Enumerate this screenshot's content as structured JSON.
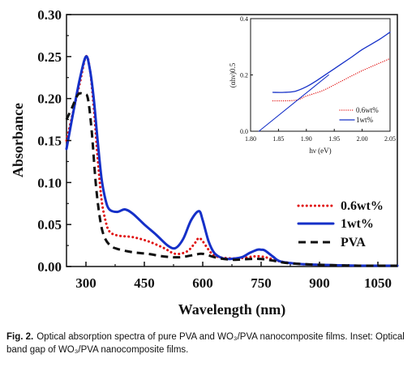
{
  "chart_data": [
    {
      "type": "line",
      "xlabel": "Wavelength (nm)",
      "ylabel": "Absorbance",
      "xlim": [
        250,
        1100
      ],
      "ylim": [
        0,
        0.3
      ],
      "xticks": [
        "300",
        "450",
        "600",
        "750",
        "900",
        "1050"
      ],
      "yticks": [
        "0.00",
        "0.05",
        "0.10",
        "0.15",
        "0.20",
        "0.25",
        "0.30"
      ],
      "legend_position": "lower-right",
      "series": [
        {
          "name": "0.6wt%",
          "color": "#e01010",
          "style": "dotted",
          "x": [
            250,
            270,
            285,
            300,
            310,
            320,
            330,
            340,
            350,
            360,
            380,
            420,
            460,
            500,
            530,
            560,
            580,
            590,
            600,
            615,
            630,
            660,
            700,
            730,
            750,
            770,
            800,
            850,
            900,
            1000,
            1100
          ],
          "y": [
            0.15,
            0.19,
            0.22,
            0.25,
            0.235,
            0.19,
            0.13,
            0.08,
            0.055,
            0.042,
            0.037,
            0.035,
            0.03,
            0.022,
            0.015,
            0.018,
            0.028,
            0.034,
            0.03,
            0.02,
            0.013,
            0.01,
            0.01,
            0.012,
            0.012,
            0.01,
            0.006,
            0.003,
            0.002,
            0.001,
            0.001
          ]
        },
        {
          "name": "1wt%",
          "color": "#1530c8",
          "style": "solid",
          "x": [
            250,
            270,
            285,
            300,
            310,
            320,
            330,
            340,
            350,
            360,
            380,
            400,
            420,
            450,
            480,
            510,
            530,
            550,
            570,
            590,
            600,
            615,
            630,
            650,
            670,
            700,
            720,
            740,
            750,
            760,
            780,
            800,
            850,
            900,
            1000,
            1100
          ],
          "y": [
            0.14,
            0.19,
            0.225,
            0.25,
            0.235,
            0.2,
            0.15,
            0.105,
            0.08,
            0.068,
            0.065,
            0.068,
            0.063,
            0.05,
            0.038,
            0.025,
            0.022,
            0.033,
            0.055,
            0.066,
            0.055,
            0.03,
            0.016,
            0.01,
            0.009,
            0.011,
            0.016,
            0.02,
            0.02,
            0.019,
            0.012,
            0.006,
            0.003,
            0.002,
            0.001,
            0.001
          ]
        },
        {
          "name": "PVA",
          "color": "#111111",
          "style": "dashed",
          "x": [
            250,
            265,
            280,
            295,
            305,
            315,
            325,
            335,
            345,
            360,
            380,
            420,
            460,
            500,
            540,
            580,
            600,
            640,
            680,
            720,
            750,
            780,
            820,
            900,
            1000,
            1100
          ],
          "y": [
            0.175,
            0.19,
            0.205,
            0.205,
            0.2,
            0.16,
            0.1,
            0.06,
            0.038,
            0.026,
            0.021,
            0.017,
            0.015,
            0.012,
            0.011,
            0.014,
            0.015,
            0.01,
            0.008,
            0.009,
            0.009,
            0.007,
            0.004,
            0.002,
            0.001,
            0.001
          ]
        }
      ]
    },
    {
      "type": "line",
      "role": "inset",
      "xlabel": "hν (eV)",
      "ylabel": "(αhν)0.5",
      "xlim": [
        1.8,
        2.05
      ],
      "ylim": [
        0.0,
        0.4
      ],
      "xticks": [
        "1.80",
        "1.85",
        "1.90",
        "1.95",
        "2.00",
        "2.05"
      ],
      "yticks": [
        "0.0",
        "0.2",
        "0.4"
      ],
      "legend_position": "lower-right",
      "series": [
        {
          "name": "0.6wt%",
          "color": "#e01010",
          "style": "dotted",
          "x": [
            1.84,
            1.88,
            1.9,
            1.93,
            1.96,
            2.0,
            2.05
          ],
          "y": [
            0.108,
            0.11,
            0.125,
            0.145,
            0.175,
            0.215,
            0.258
          ]
        },
        {
          "name": "1wt%",
          "color": "#1530c8",
          "style": "solid",
          "x": [
            1.84,
            1.86,
            1.88,
            1.9,
            1.92,
            1.95,
            1.98,
            2.0,
            2.03,
            2.05
          ],
          "y": [
            0.138,
            0.138,
            0.142,
            0.158,
            0.182,
            0.222,
            0.262,
            0.29,
            0.325,
            0.352
          ]
        },
        {
          "name": "",
          "color": "#1530c8",
          "style": "solid-fit",
          "x": [
            1.815,
            1.94
          ],
          "y": [
            0.0,
            0.2
          ]
        }
      ]
    }
  ],
  "caption": {
    "label": "Fig. 2.",
    "text": "Optical absorption spectra of pure PVA and WO₃/PVA nanocomposite films. Inset: Optical band gap of WO₃/PVA nanocomposite films."
  }
}
